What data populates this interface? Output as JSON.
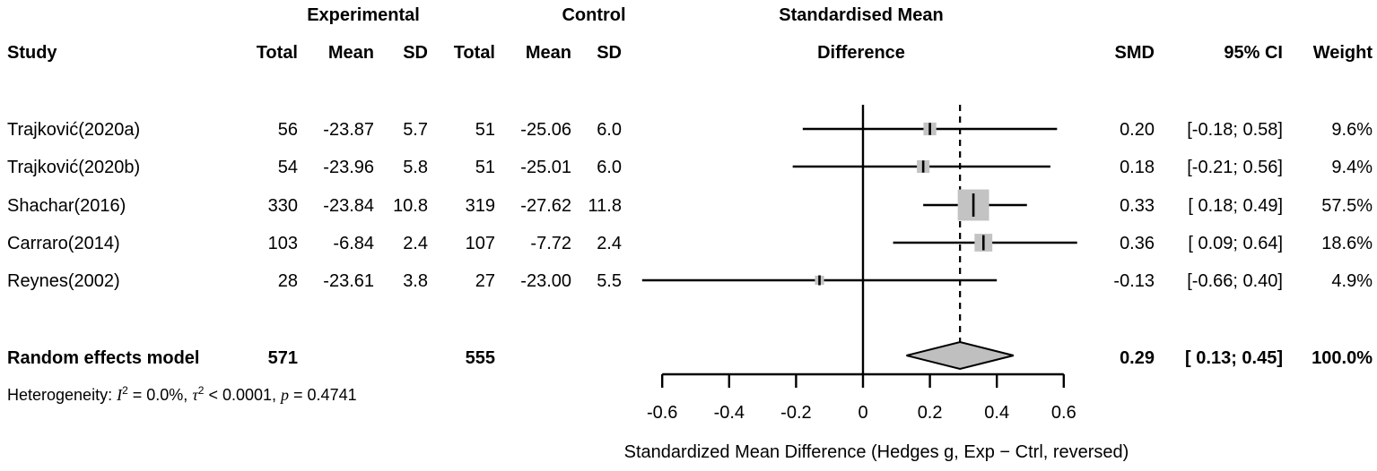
{
  "chart_data": {
    "type": "forest",
    "header": {
      "group_exp": "Experimental",
      "group_ctrl": "Control",
      "group_smd_line1": "Standardised Mean",
      "group_smd_line2": "Difference",
      "study": "Study",
      "total": "Total",
      "mean": "Mean",
      "sd": "SD",
      "smd": "SMD",
      "ci": "95% CI",
      "weight": "Weight"
    },
    "studies": [
      {
        "label": "Trajković(2020a)",
        "exp_total": "56",
        "exp_mean": "-23.87",
        "exp_sd": "5.7",
        "ctrl_total": "51",
        "ctrl_mean": "-25.06",
        "ctrl_sd": "6.0",
        "smd": 0.2,
        "smd_text": "0.20",
        "ci_low": -0.18,
        "ci_high": 0.58,
        "ci_text": "[-0.18; 0.58]",
        "weight": 9.6,
        "weight_text": "9.6%"
      },
      {
        "label": "Trajković(2020b)",
        "exp_total": "54",
        "exp_mean": "-23.96",
        "exp_sd": "5.8",
        "ctrl_total": "51",
        "ctrl_mean": "-25.01",
        "ctrl_sd": "6.0",
        "smd": 0.18,
        "smd_text": "0.18",
        "ci_low": -0.21,
        "ci_high": 0.56,
        "ci_text": "[-0.21; 0.56]",
        "weight": 9.4,
        "weight_text": "9.4%"
      },
      {
        "label": "Shachar(2016)",
        "exp_total": "330",
        "exp_mean": "-23.84",
        "exp_sd": "10.8",
        "ctrl_total": "319",
        "ctrl_mean": "-27.62",
        "ctrl_sd": "11.8",
        "smd": 0.33,
        "smd_text": "0.33",
        "ci_low": 0.18,
        "ci_high": 0.49,
        "ci_text": "[ 0.18; 0.49]",
        "weight": 57.5,
        "weight_text": "57.5%"
      },
      {
        "label": "Carraro(2014)",
        "exp_total": "103",
        "exp_mean": "-6.84",
        "exp_sd": "2.4",
        "ctrl_total": "107",
        "ctrl_mean": "-7.72",
        "ctrl_sd": "2.4",
        "smd": 0.36,
        "smd_text": "0.36",
        "ci_low": 0.09,
        "ci_high": 0.64,
        "ci_text": "[ 0.09; 0.64]",
        "weight": 18.6,
        "weight_text": "18.6%"
      },
      {
        "label": "Reynes(2002)",
        "exp_total": "28",
        "exp_mean": "-23.61",
        "exp_sd": "3.8",
        "ctrl_total": "27",
        "ctrl_mean": "-23.00",
        "ctrl_sd": "5.5",
        "smd": -0.13,
        "smd_text": "-0.13",
        "ci_low": -0.66,
        "ci_high": 0.4,
        "ci_text": "[-0.66; 0.40]",
        "weight": 4.9,
        "weight_text": "4.9%"
      }
    ],
    "summary": {
      "label": "Random effects model",
      "exp_total": "571",
      "ctrl_total": "555",
      "smd": 0.29,
      "smd_text": "0.29",
      "ci_low": 0.13,
      "ci_high": 0.45,
      "ci_text": "[ 0.13; 0.45]",
      "weight_text": "100.0%"
    },
    "heterogeneity": {
      "prefix": "Heterogeneity: ",
      "i_sym": "I",
      "i_sup": "2",
      "i_val": " = 0.0%, ",
      "tau_sym": "τ",
      "tau_sup": "2",
      "tau_val": " < 0.0001, ",
      "p_sym": "p",
      "p_val": " = 0.4741"
    },
    "axis": {
      "ticks": [
        -0.6,
        -0.4,
        -0.2,
        0,
        0.2,
        0.4,
        0.6
      ],
      "tick_labels": [
        "-0.6",
        "-0.4",
        "-0.2",
        "0",
        "0.2",
        "0.4",
        "0.6"
      ],
      "xlim": [
        -0.75,
        0.75
      ],
      "xlabel": "Standardized Mean Difference (Hedges g, Exp − Ctrl, reversed)"
    },
    "colors": {
      "square_fill": "#c3c3c3",
      "diamond_fill": "#bfbfbf",
      "line": "#000000",
      "background": "#ffffff"
    }
  }
}
